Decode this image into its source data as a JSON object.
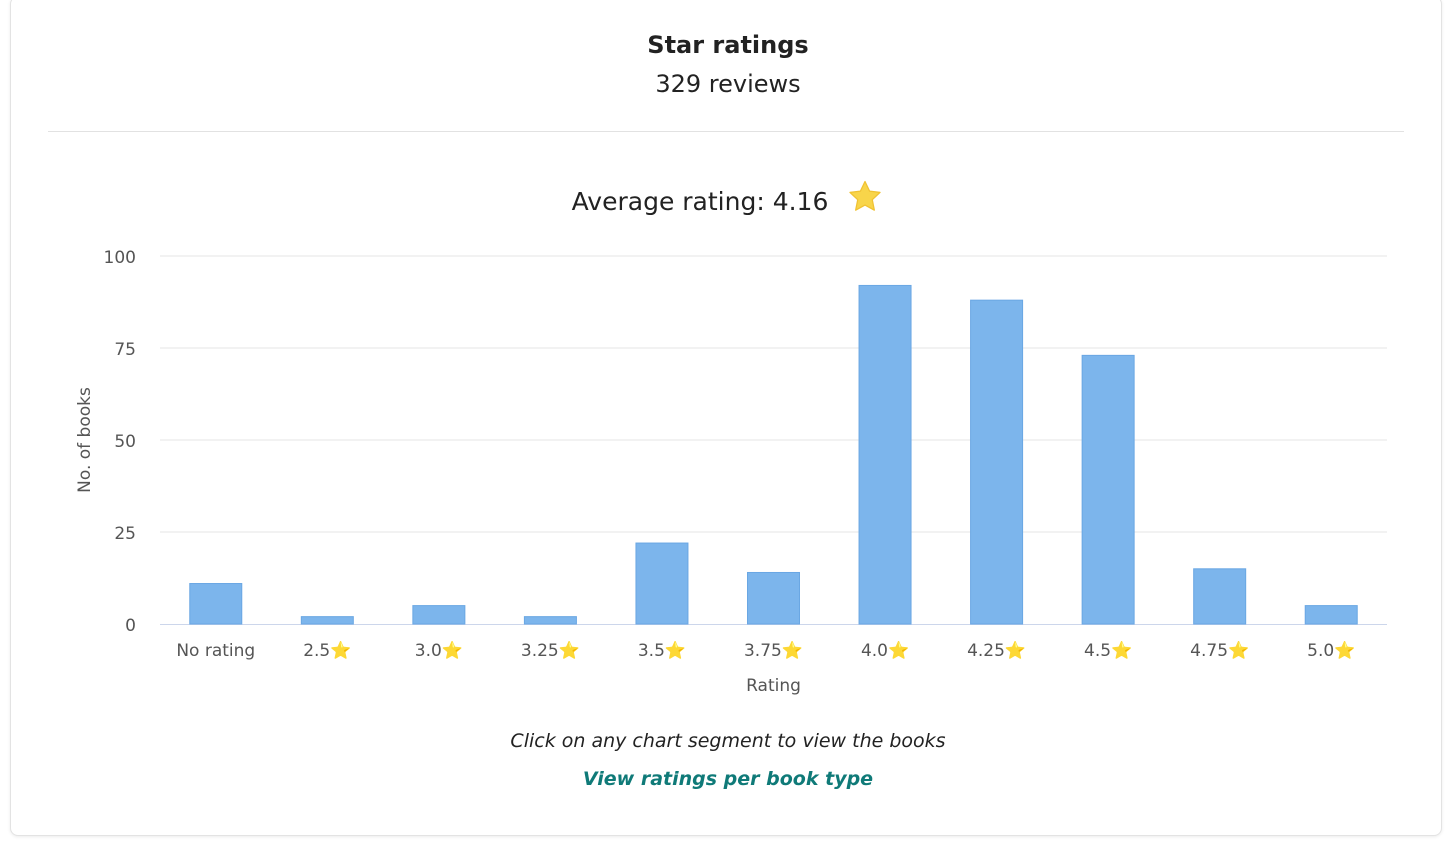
{
  "header": {
    "title": "Star ratings",
    "subtitle": "329 reviews",
    "average_label": "Average rating: 4.16"
  },
  "footer": {
    "note": "Click on any chart segment to view the books",
    "link_label": "View ratings per book type"
  },
  "colors": {
    "bar": "#7cb5ec",
    "grid": "#e6e6e6",
    "axis_line": "#ccd6eb",
    "star": "#f8d54a",
    "link": "#0f7a78"
  },
  "icons": {
    "average_star": "star-icon",
    "tick_star": "star-icon"
  },
  "chart_data": {
    "type": "bar",
    "categories": [
      "No rating",
      "2.5⭐",
      "3.0⭐",
      "3.25⭐",
      "3.5⭐",
      "3.75⭐",
      "4.0⭐",
      "4.25⭐",
      "4.5⭐",
      "4.75⭐",
      "5.0⭐"
    ],
    "series": [
      {
        "values": [
          11,
          2,
          5,
          2,
          22,
          14,
          92,
          88,
          73,
          15,
          5
        ]
      }
    ],
    "xlabel": "Rating",
    "ylabel": "No. of books",
    "ylim": [
      0,
      100
    ],
    "yticks": [
      0,
      25,
      50,
      75,
      100
    ],
    "grid": true,
    "legend": "none"
  }
}
